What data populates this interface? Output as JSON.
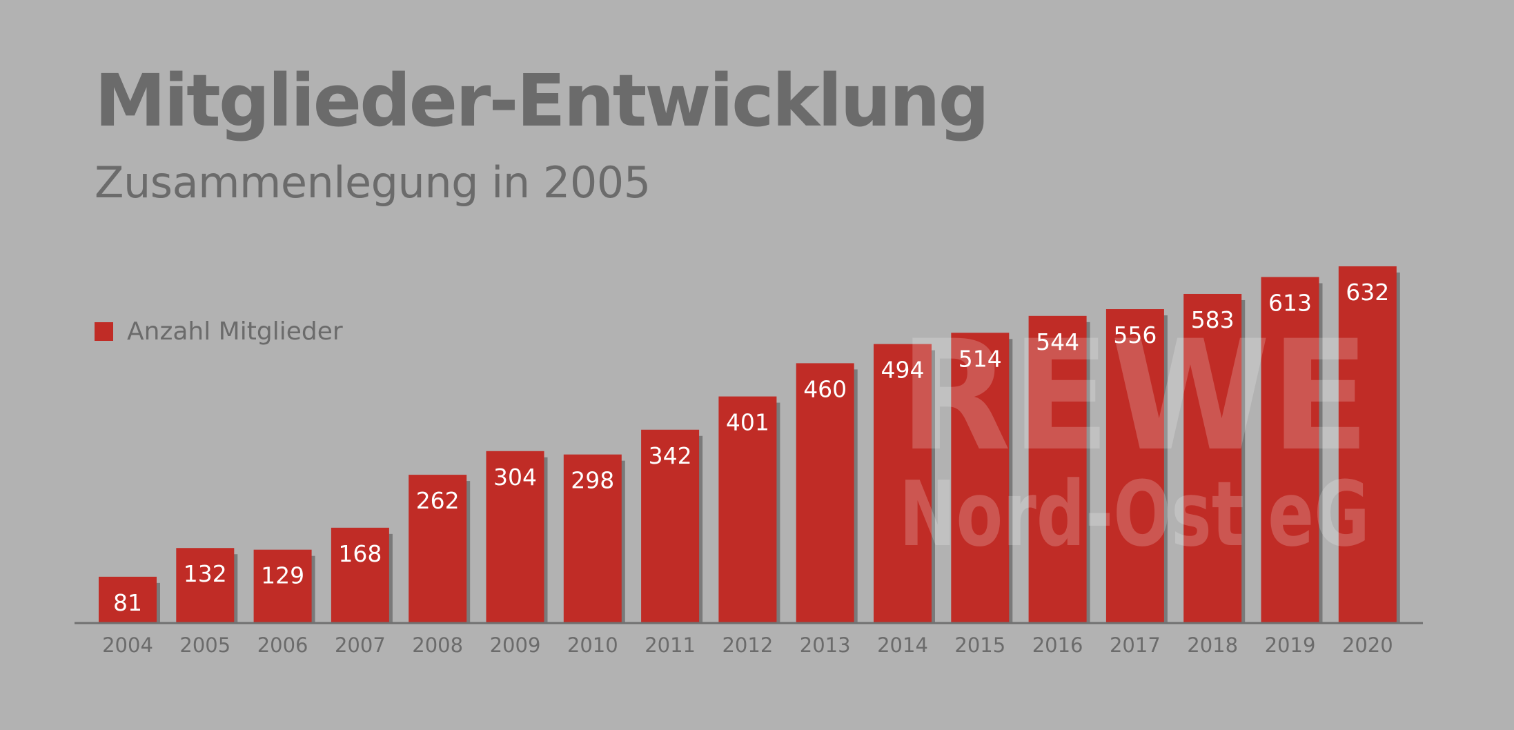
{
  "title": "Mitglieder-Entwicklung",
  "subtitle": "Zusammenlegung in 2005",
  "legend": {
    "label": "Anzahl Mitglieder"
  },
  "watermark": {
    "line1": "REWE",
    "line2": "Nord-Ost eG"
  },
  "colors": {
    "background": "#b2b2b2",
    "bar": "#c02c26",
    "shadow": "#7a7a7a",
    "axis": "#707070",
    "text": "#6b6b6b",
    "label": "#ffffff"
  },
  "chart_data": {
    "type": "bar",
    "title": "Mitglieder-Entwicklung",
    "subtitle": "Zusammenlegung in 2005",
    "xlabel": "",
    "ylabel": "",
    "grid": false,
    "legend_position": "left",
    "categories": [
      "2004",
      "2005",
      "2006",
      "2007",
      "2008",
      "2009",
      "2010",
      "2011",
      "2012",
      "2013",
      "2014",
      "2015",
      "2016",
      "2017",
      "2018",
      "2019",
      "2020"
    ],
    "series": [
      {
        "name": "Anzahl Mitglieder",
        "values": [
          81,
          132,
          129,
          168,
          262,
          304,
          298,
          342,
          401,
          460,
          494,
          514,
          544,
          556,
          583,
          613,
          632
        ]
      }
    ]
  }
}
